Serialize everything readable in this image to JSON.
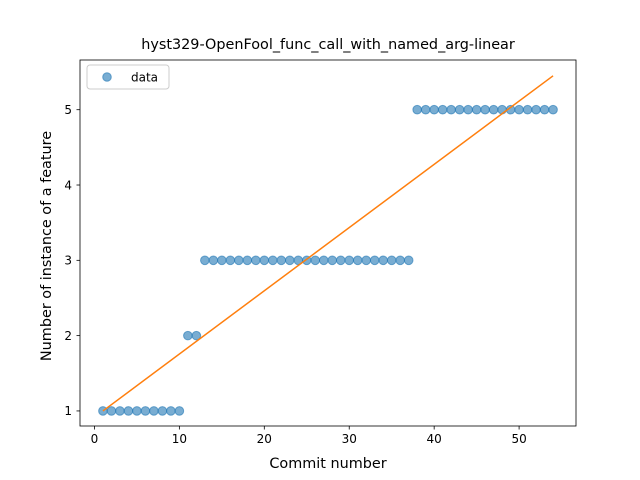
{
  "chart_data": {
    "type": "scatter",
    "title": "hyst329-OpenFool_func_call_with_named_arg-linear",
    "xlabel": "Commit number",
    "ylabel": "Number of instance of a feature",
    "xlim": [
      -1.7,
      56.7
    ],
    "ylim": [
      0.8,
      5.66
    ],
    "xticks": [
      0,
      10,
      20,
      30,
      40,
      50
    ],
    "yticks": [
      1,
      2,
      3,
      4,
      5
    ],
    "grid": false,
    "legend_position": "top-left",
    "series": [
      {
        "name": "data",
        "kind": "scatter",
        "color": "#1f77b4",
        "x": [
          1,
          2,
          3,
          4,
          5,
          6,
          7,
          8,
          9,
          10,
          11,
          12,
          13,
          14,
          15,
          16,
          17,
          18,
          19,
          20,
          21,
          22,
          23,
          24,
          25,
          26,
          27,
          28,
          29,
          30,
          31,
          32,
          33,
          34,
          35,
          36,
          37,
          38,
          39,
          40,
          41,
          42,
          43,
          44,
          45,
          46,
          47,
          48,
          49,
          50,
          51,
          52,
          53,
          54
        ],
        "y": [
          1,
          1,
          1,
          1,
          1,
          1,
          1,
          1,
          1,
          1,
          2,
          2,
          3,
          3,
          3,
          3,
          3,
          3,
          3,
          3,
          3,
          3,
          3,
          3,
          3,
          3,
          3,
          3,
          3,
          3,
          3,
          3,
          3,
          3,
          3,
          3,
          3,
          5,
          5,
          5,
          5,
          5,
          5,
          5,
          5,
          5,
          5,
          5,
          5,
          5,
          5,
          5,
          5,
          5
        ]
      },
      {
        "kind": "line",
        "color": "#ff7f0e",
        "x": [
          1,
          54
        ],
        "y": [
          1.0,
          5.45
        ]
      }
    ]
  }
}
